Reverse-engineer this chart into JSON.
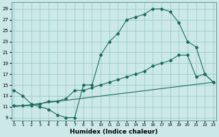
{
  "xlabel": "Humidex (Indice chaleur)",
  "bg_color": "#cce8e8",
  "grid_color": "#99cccc",
  "line_color": "#1a6b5e",
  "x_ticks": [
    0,
    1,
    2,
    3,
    4,
    5,
    6,
    7,
    8,
    9,
    10,
    11,
    12,
    13,
    14,
    15,
    16,
    17,
    18,
    19,
    20,
    21,
    22,
    23
  ],
  "y_ticks": [
    9,
    11,
    13,
    15,
    17,
    19,
    21,
    23,
    25,
    27,
    29
  ],
  "xlim": [
    -0.3,
    23.3
  ],
  "ylim": [
    8.5,
    30.2
  ],
  "line1_x": [
    0,
    1,
    2,
    3,
    4,
    5,
    6,
    7,
    8,
    9,
    10,
    11,
    12,
    13,
    14,
    15,
    16,
    17,
    18,
    19,
    20,
    21,
    22,
    23
  ],
  "line1_y": [
    14,
    13,
    11.5,
    11,
    10.5,
    9.5,
    9,
    9,
    15,
    15,
    20.5,
    23,
    24.5,
    27,
    27.5,
    28,
    29,
    29,
    28.5,
    26.5,
    23,
    22,
    17,
    15.5
  ],
  "line2_x": [
    0,
    1,
    2,
    3,
    4,
    5,
    6,
    7,
    8,
    9,
    10,
    11,
    12,
    13,
    14,
    15,
    16,
    17,
    18,
    19,
    20,
    21,
    22,
    23
  ],
  "line2_y": [
    11.2,
    11.2,
    11.2,
    11.5,
    12,
    12,
    12.5,
    14,
    14,
    14.5,
    15,
    15.5,
    16,
    16.5,
    17,
    17.5,
    18.5,
    19,
    19.5,
    20.5,
    20.5,
    16.5,
    17,
    15.5
  ],
  "line3_x": [
    0,
    23
  ],
  "line3_y": [
    11,
    15.5
  ]
}
